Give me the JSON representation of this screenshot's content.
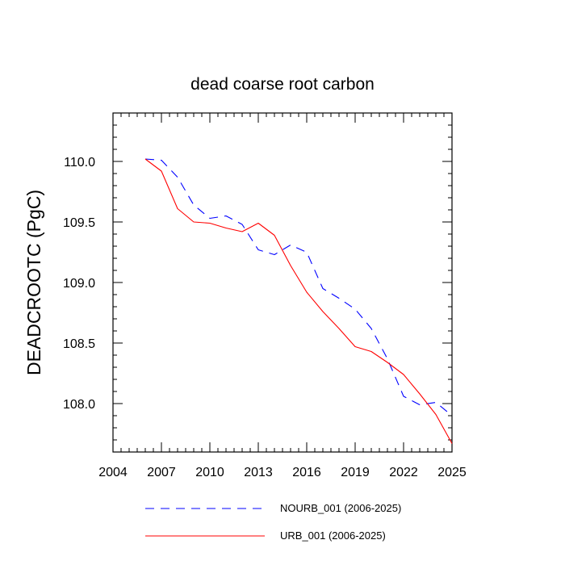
{
  "chart_data": {
    "type": "line",
    "title": "dead coarse root carbon",
    "xlabel": "",
    "ylabel": "DEADCROOTC  (PgC)",
    "xlim": [
      2004,
      2025
    ],
    "ylim": [
      107.6,
      110.4
    ],
    "x_ticks": [
      2004,
      2007,
      2010,
      2013,
      2016,
      2019,
      2022,
      2025
    ],
    "x_tick_labels": [
      "2004",
      "2007",
      "2010",
      "2013",
      "2016",
      "2019",
      "2022",
      "2025"
    ],
    "y_ticks": [
      108.0,
      108.5,
      109.0,
      109.5,
      110.0
    ],
    "y_tick_labels": [
      "108.0",
      "108.5",
      "109.0",
      "109.5",
      "110.0"
    ],
    "grid": false,
    "legend_position": "bottom",
    "x": [
      2006,
      2007,
      2008,
      2009,
      2010,
      2011,
      2012,
      2013,
      2014,
      2015,
      2016,
      2017,
      2018,
      2019,
      2020,
      2021,
      2022,
      2023,
      2024,
      2025
    ],
    "series": [
      {
        "name": "NOURB_001 (2006-2025)",
        "color": "#0000ff",
        "dash": "dashed",
        "values": [
          110.02,
          110.01,
          109.87,
          109.64,
          109.53,
          109.55,
          109.48,
          109.27,
          109.23,
          109.31,
          109.25,
          108.95,
          108.87,
          108.78,
          108.62,
          108.37,
          108.06,
          107.99,
          108.01,
          107.9
        ]
      },
      {
        "name": "URB_001 (2006-2025)",
        "color": "#ff0000",
        "dash": "solid",
        "values": [
          110.02,
          109.92,
          109.61,
          109.5,
          109.49,
          109.45,
          109.42,
          109.49,
          109.39,
          109.14,
          108.92,
          108.76,
          108.62,
          108.47,
          108.43,
          108.34,
          108.24,
          108.08,
          107.91,
          107.67
        ]
      }
    ]
  }
}
